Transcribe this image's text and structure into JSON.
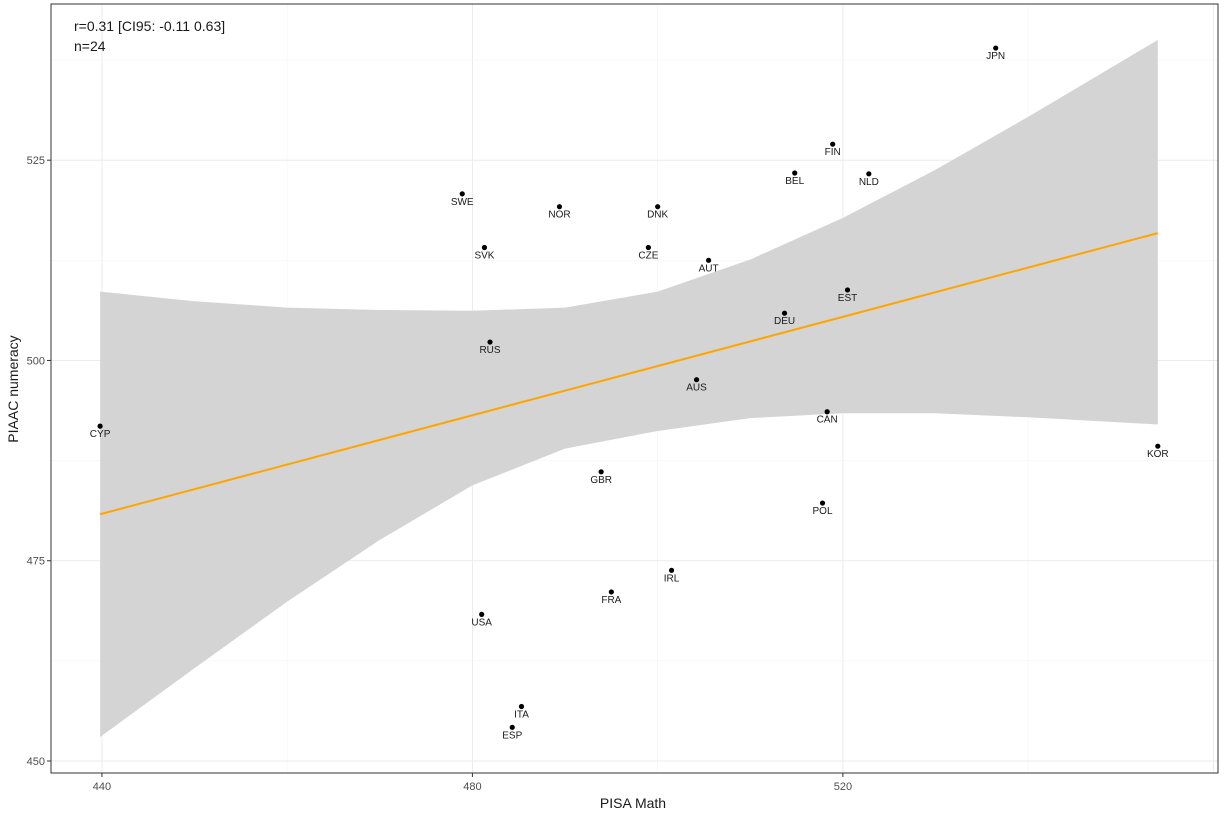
{
  "chart_data": {
    "type": "scatter",
    "title": "",
    "xlabel": "PISA Math",
    "ylabel": "PIAAC numeracy",
    "annotations": [
      "r=0.31 [CI95: -0.11 0.63]",
      "n=24"
    ],
    "xlim": [
      434.5,
      560.5
    ],
    "ylim": [
      448.5,
      544.5
    ],
    "x_ticks": [
      440,
      480,
      520
    ],
    "y_ticks": [
      450,
      475,
      500,
      525
    ],
    "grid": true,
    "colors": {
      "fit_line": "#ffa500",
      "confidence_band": "#d4d4d4",
      "points": "#000000",
      "grid_major": "#ebebeb",
      "grid_minor": "#f4f4f4",
      "panel_border": "#333333"
    },
    "points": [
      {
        "label": "CYP",
        "x": 439.8,
        "y": 491.8
      },
      {
        "label": "SWE",
        "x": 478.9,
        "y": 520.8
      },
      {
        "label": "SVK",
        "x": 481.3,
        "y": 514.1
      },
      {
        "label": "RUS",
        "x": 481.9,
        "y": 502.3
      },
      {
        "label": "USA",
        "x": 481.0,
        "y": 468.3
      },
      {
        "label": "ESP",
        "x": 484.3,
        "y": 454.2
      },
      {
        "label": "ITA",
        "x": 485.3,
        "y": 456.8
      },
      {
        "label": "NOR",
        "x": 489.4,
        "y": 519.2
      },
      {
        "label": "GBR",
        "x": 493.9,
        "y": 486.1
      },
      {
        "label": "FRA",
        "x": 495.0,
        "y": 471.1
      },
      {
        "label": "CZE",
        "x": 499.0,
        "y": 514.1
      },
      {
        "label": "DNK",
        "x": 500.0,
        "y": 519.2
      },
      {
        "label": "IRL",
        "x": 501.5,
        "y": 473.8
      },
      {
        "label": "AUS",
        "x": 504.2,
        "y": 497.6
      },
      {
        "label": "AUT",
        "x": 505.5,
        "y": 512.5
      },
      {
        "label": "DEU",
        "x": 513.7,
        "y": 505.9
      },
      {
        "label": "BEL",
        "x": 514.8,
        "y": 523.4
      },
      {
        "label": "CAN",
        "x": 518.3,
        "y": 493.6
      },
      {
        "label": "POL",
        "x": 517.8,
        "y": 482.2
      },
      {
        "label": "FIN",
        "x": 518.9,
        "y": 527.0
      },
      {
        "label": "EST",
        "x": 520.5,
        "y": 508.8
      },
      {
        "label": "NLD",
        "x": 522.8,
        "y": 523.3
      },
      {
        "label": "JPN",
        "x": 536.5,
        "y": 539.0
      },
      {
        "label": "KOR",
        "x": 554.0,
        "y": 489.3
      }
    ],
    "fit": {
      "x": [
        439.8,
        554.0
      ],
      "y": [
        480.8,
        515.9
      ]
    },
    "confidence_band": {
      "x": [
        439.8,
        450,
        460,
        470,
        480,
        490,
        500,
        510,
        520,
        530,
        540,
        554.0
      ],
      "upper": [
        508.6,
        507.4,
        506.6,
        506.3,
        506.2,
        506.6,
        508.6,
        512.6,
        517.8,
        523.8,
        530.4,
        540.0
      ],
      "lower": [
        453.0,
        461.6,
        469.9,
        477.6,
        484.4,
        489.0,
        491.2,
        492.8,
        493.4,
        493.4,
        492.9,
        492.0
      ]
    }
  }
}
